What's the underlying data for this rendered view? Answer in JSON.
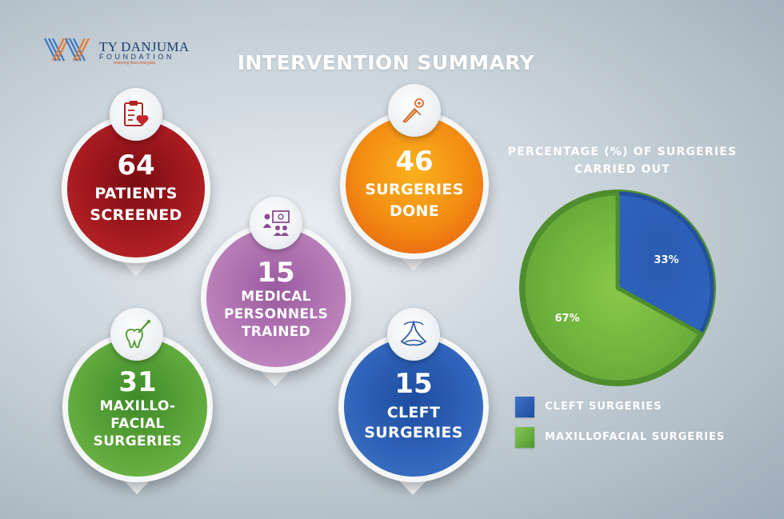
{
  "logo": {
    "name": "TY DANJUMA",
    "subtitle": "FOUNDATION",
    "tagline": "restoring lives everyday"
  },
  "title": "INTERVENTION SUMMARY",
  "stats": [
    {
      "number": "64",
      "line1": "PATIENTS",
      "line2": "SCREENED",
      "icon": "clipboard-heart-icon",
      "color": "#a8161d"
    },
    {
      "number": "46",
      "line1": "SURGERIES",
      "line2": "DONE",
      "icon": "scalpel-icon",
      "color": "#f2830f"
    },
    {
      "number": "15",
      "line1": "MEDICAL",
      "line2": "PERSONNELS",
      "line3": "TRAINED",
      "icon": "training-presentation-icon",
      "color": "#b679b4"
    },
    {
      "number": "31",
      "line1": "MAXILLO-",
      "line2": "FACIAL",
      "line3": "SURGERIES",
      "icon": "tooth-tool-icon",
      "color": "#5ea83a"
    },
    {
      "number": "15",
      "line1": "CLEFT",
      "line2": "SURGERIES",
      "icon": "cleft-lip-icon",
      "color": "#2f62b9"
    }
  ],
  "chart_data": {
    "type": "pie",
    "title": "PERCENTAGE (%) OF SURGERIES CARRIED OUT",
    "categories": [
      "CLEFT SURGERIES",
      "MAXILLOFACIAL SURGERIES"
    ],
    "values": [
      33,
      67
    ],
    "labels": [
      "33%",
      "67%"
    ],
    "colors": [
      "#2d5fb5",
      "#6cb33e"
    ],
    "legend": "bottom"
  }
}
